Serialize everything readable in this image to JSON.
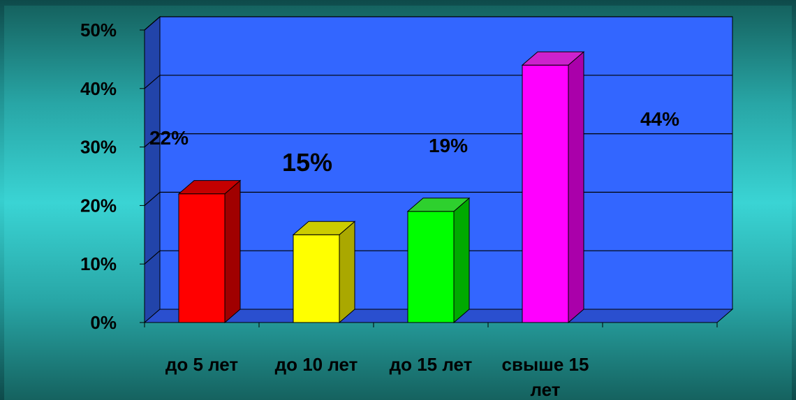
{
  "chart_data": {
    "type": "bar",
    "categories": [
      "до 5 лет",
      "до 10 лет",
      "до 15 лет",
      "свыше 15 лет"
    ],
    "category_lines": [
      [
        "до 5 лет"
      ],
      [
        "до 10 лет"
      ],
      [
        "до 15 лет"
      ],
      [
        "свыше 15",
        "лет"
      ]
    ],
    "values": [
      22,
      15,
      19,
      44
    ],
    "data_labels": [
      "22%",
      "15%",
      "19%",
      "44%"
    ],
    "value_unit": "%",
    "ylim": [
      0,
      50
    ],
    "yticks": [
      0,
      10,
      20,
      30,
      40,
      50
    ],
    "ytick_labels": [
      "0%",
      "10%",
      "20%",
      "30%",
      "40%",
      "50%"
    ],
    "grid": true,
    "legend": "none",
    "title": "",
    "xlabel": "",
    "ylabel": "",
    "style": "3d-column",
    "colors": {
      "plot_back_wall": "#3366ff",
      "plot_side_wall": "#2244aa",
      "plot_floor": "#2a4fcf",
      "bars": [
        "#ff0000",
        "#ffff00",
        "#00ff00",
        "#ff00ff"
      ],
      "bars_side": [
        "#a00000",
        "#aaa800",
        "#00aa00",
        "#aa00aa"
      ],
      "bars_top": [
        "#c40000",
        "#cccc00",
        "#2ed02e",
        "#cc22cc"
      ]
    }
  }
}
